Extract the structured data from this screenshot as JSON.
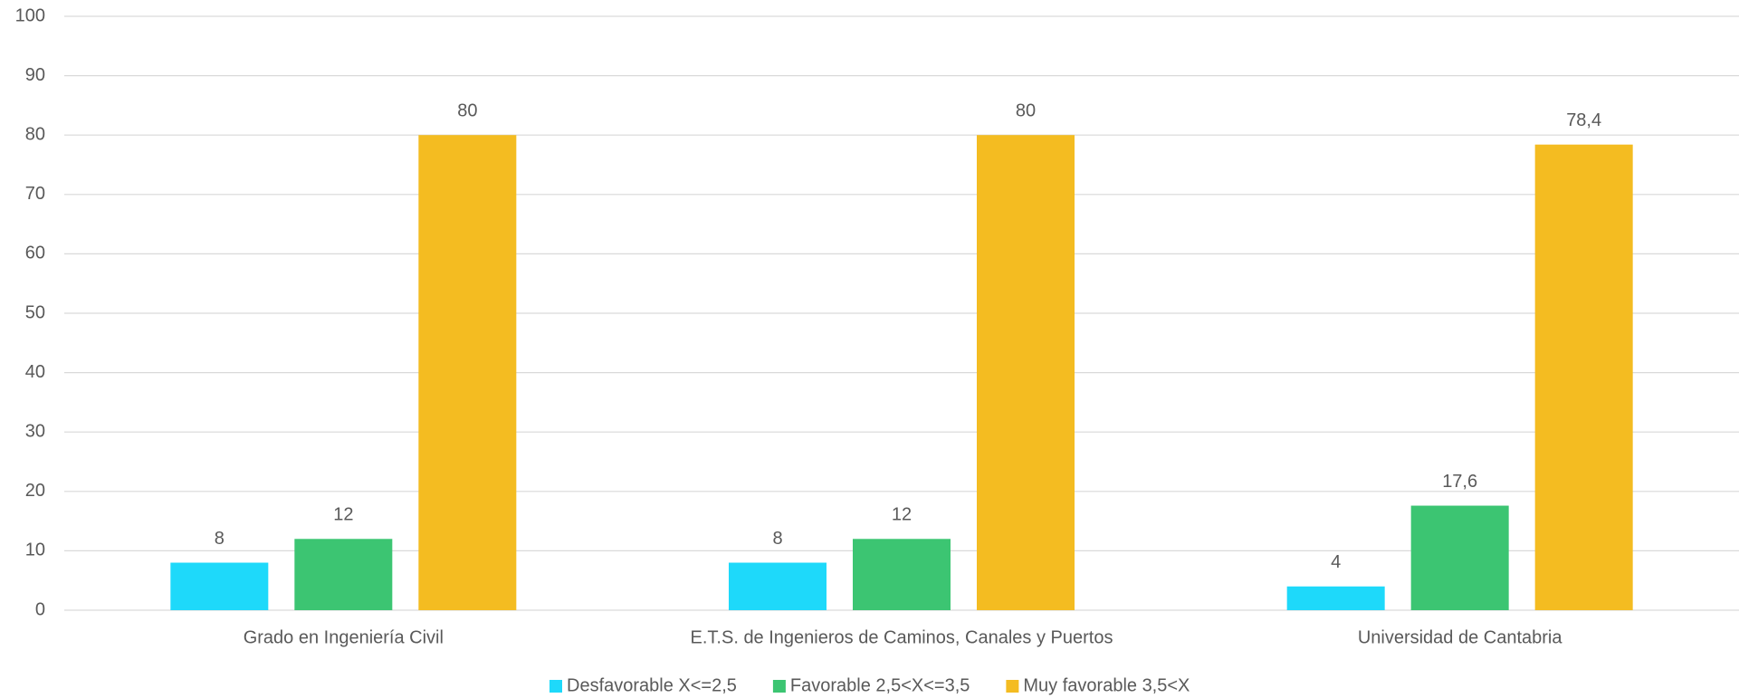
{
  "chart_data": {
    "type": "bar",
    "categories": [
      "Grado en Ingeniería Civil",
      "E.T.S. de Ingenieros de Caminos, Canales y Puertos",
      "Universidad de Cantabria"
    ],
    "series": [
      {
        "name": "Desfavorable X<=2,5",
        "color": "#1ed9fa",
        "values": [
          8,
          8,
          4
        ]
      },
      {
        "name": "Favorable 2,5<X<=3,5",
        "color": "#3cc572",
        "values": [
          12,
          12,
          17.6
        ],
        "value_labels": [
          "12",
          "12",
          "17,6"
        ]
      },
      {
        "name": "Muy favorable 3,5<X",
        "color": "#f4bc21",
        "values": [
          80,
          80,
          78.4
        ],
        "value_labels": [
          "80",
          "80",
          "78,4"
        ]
      }
    ],
    "ylim": [
      0,
      100
    ],
    "yticks": [
      0,
      10,
      20,
      30,
      40,
      50,
      60,
      70,
      80,
      90,
      100
    ],
    "grid": true,
    "legend": "bottom"
  }
}
